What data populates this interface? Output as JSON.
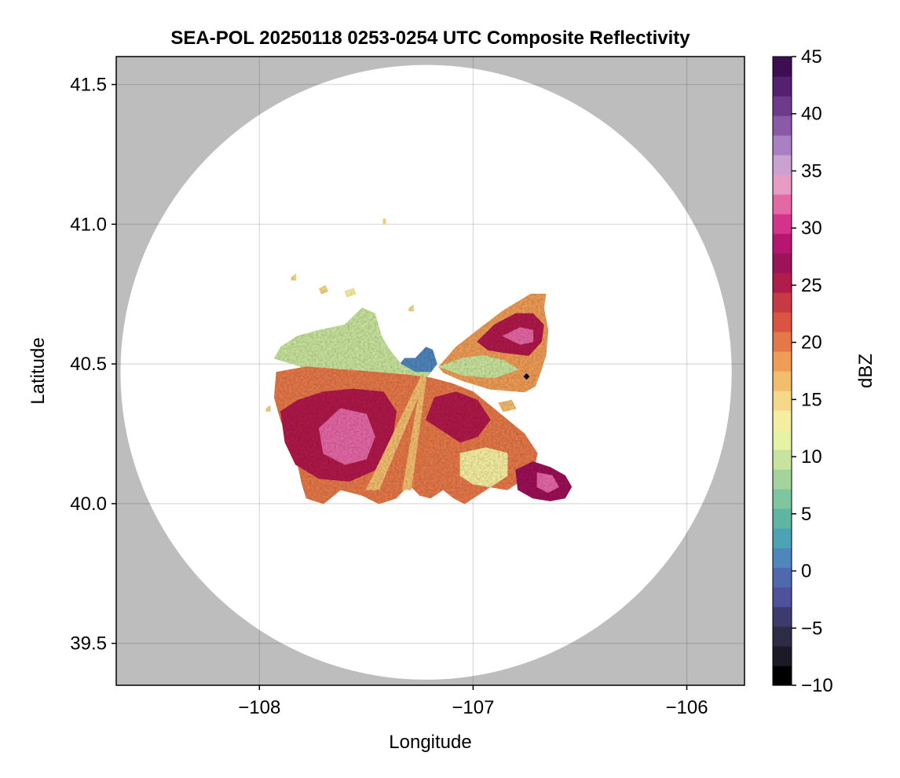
{
  "chart_data": {
    "type": "heatmap",
    "title": "SEA-POL 20250118 0253-0254 UTC Composite Reflectivity",
    "xlabel": "Longitude",
    "ylabel": "Latitude",
    "xlim": [
      -108.67,
      -105.73
    ],
    "ylim": [
      39.35,
      41.6
    ],
    "x_ticks": [
      -108,
      -107,
      -106
    ],
    "x_tick_labels": [
      "−108",
      "−107",
      "−106"
    ],
    "y_ticks": [
      39.5,
      40.0,
      40.5,
      41.0,
      41.5
    ],
    "y_tick_labels": [
      "39.5",
      "40.0",
      "40.5",
      "41.0",
      "41.5"
    ],
    "grid": true,
    "background_color": "#bdbdbd",
    "radar_coverage": {
      "center_lon": -107.22,
      "center_lat": 40.47,
      "radius_lon": 1.43,
      "radius_lat": 1.1,
      "fill": "#ffffff"
    },
    "colorbar": {
      "label": "dBZ",
      "min": -10,
      "max": 45,
      "ticks": [
        -10,
        -5,
        0,
        5,
        10,
        15,
        20,
        25,
        30,
        35,
        40,
        45
      ],
      "tick_labels": [
        "−10",
        "−5",
        "0",
        "5",
        "10",
        "15",
        "20",
        "25",
        "30",
        "35",
        "40",
        "45"
      ],
      "colors": [
        "#000000",
        "#1c1a27",
        "#2e2b45",
        "#3d3a6e",
        "#4f519a",
        "#5069ae",
        "#4f86bb",
        "#4ba3b4",
        "#5db5a2",
        "#7fc59f",
        "#a4d49b",
        "#c7e39d",
        "#e7f3a4",
        "#f5eda0",
        "#f6d88a",
        "#f3bd6e",
        "#ee9c56",
        "#e57848",
        "#d95541",
        "#c73a43",
        "#b01d4b",
        "#9c1458",
        "#b6166f",
        "#d3338a",
        "#e468a4",
        "#e99cc3",
        "#c9a2d2",
        "#a981c2",
        "#8a5aa8",
        "#6e3a8c",
        "#55206f",
        "#3e0e52"
      ]
    },
    "marker": {
      "lon": -106.75,
      "lat": 40.455,
      "shape": "diamond",
      "color": "#000000"
    },
    "echo_regions": [
      {
        "name": "blue-echo",
        "points": [
          [
            -107.35,
            40.49
          ],
          [
            -107.32,
            40.52
          ],
          [
            -107.27,
            40.52
          ],
          [
            -107.22,
            40.56
          ],
          [
            -107.19,
            40.55
          ],
          [
            -107.17,
            40.5
          ],
          [
            -107.2,
            40.47
          ],
          [
            -107.26,
            40.46
          ],
          [
            -107.34,
            40.47
          ]
        ],
        "dbz": 1
      },
      {
        "name": "north-teal",
        "points": [
          [
            -107.9,
            40.56
          ],
          [
            -107.82,
            40.6
          ],
          [
            -107.72,
            40.62
          ],
          [
            -107.6,
            40.64
          ],
          [
            -107.52,
            40.7
          ],
          [
            -107.46,
            40.68
          ],
          [
            -107.43,
            40.6
          ],
          [
            -107.4,
            40.56
          ],
          [
            -107.34,
            40.5
          ],
          [
            -107.27,
            40.47
          ],
          [
            -107.2,
            40.47
          ],
          [
            -107.24,
            40.43
          ],
          [
            -107.4,
            40.45
          ],
          [
            -107.6,
            40.47
          ],
          [
            -107.8,
            40.49
          ],
          [
            -107.93,
            40.52
          ]
        ],
        "dbz": 10
      },
      {
        "name": "ne-wedge",
        "points": [
          [
            -107.16,
            40.49
          ],
          [
            -107.08,
            40.56
          ],
          [
            -106.98,
            40.62
          ],
          [
            -106.86,
            40.69
          ],
          [
            -106.73,
            40.75
          ],
          [
            -106.66,
            40.75
          ],
          [
            -106.67,
            40.7
          ],
          [
            -106.65,
            40.62
          ],
          [
            -106.66,
            40.53
          ],
          [
            -106.69,
            40.46
          ],
          [
            -106.71,
            40.42
          ],
          [
            -106.76,
            40.4
          ],
          [
            -106.92,
            40.41
          ],
          [
            -107.05,
            40.44
          ],
          [
            -107.14,
            40.47
          ]
        ],
        "dbz": 19
      },
      {
        "name": "ne-teal",
        "points": [
          [
            -107.16,
            40.49
          ],
          [
            -107.05,
            40.52
          ],
          [
            -106.95,
            40.53
          ],
          [
            -106.85,
            40.51
          ],
          [
            -106.79,
            40.48
          ],
          [
            -106.9,
            40.45
          ],
          [
            -107.05,
            40.46
          ]
        ],
        "dbz": 10
      },
      {
        "name": "ne-orange",
        "points": [
          [
            -106.98,
            40.58
          ],
          [
            -106.9,
            40.64
          ],
          [
            -106.8,
            40.68
          ],
          [
            -106.72,
            40.68
          ],
          [
            -106.67,
            40.64
          ],
          [
            -106.68,
            40.58
          ],
          [
            -106.74,
            40.53
          ],
          [
            -106.85,
            40.54
          ],
          [
            -106.93,
            40.55
          ]
        ],
        "dbz": 26
      },
      {
        "name": "ne-core",
        "points": [
          [
            -106.86,
            40.6
          ],
          [
            -106.78,
            40.63
          ],
          [
            -106.72,
            40.62
          ],
          [
            -106.72,
            40.58
          ],
          [
            -106.78,
            40.57
          ]
        ],
        "dbz": 32
      },
      {
        "name": "main-echo",
        "points": [
          [
            -107.92,
            40.47
          ],
          [
            -107.93,
            40.38
          ],
          [
            -107.9,
            40.3
          ],
          [
            -107.86,
            40.22
          ],
          [
            -107.82,
            40.14
          ],
          [
            -107.8,
            40.07
          ],
          [
            -107.78,
            40.02
          ],
          [
            -107.7,
            40.0
          ],
          [
            -107.62,
            40.05
          ],
          [
            -107.52,
            40.03
          ],
          [
            -107.44,
            40.0
          ],
          [
            -107.36,
            40.02
          ],
          [
            -107.3,
            40.07
          ],
          [
            -107.25,
            40.03
          ],
          [
            -107.2,
            40.02
          ],
          [
            -107.14,
            40.05
          ],
          [
            -107.09,
            40.02
          ],
          [
            -107.04,
            40.0
          ],
          [
            -106.98,
            40.03
          ],
          [
            -106.92,
            40.06
          ],
          [
            -106.84,
            40.05
          ],
          [
            -106.78,
            40.08
          ],
          [
            -106.72,
            40.11
          ],
          [
            -106.7,
            40.18
          ],
          [
            -106.76,
            40.25
          ],
          [
            -106.84,
            40.3
          ],
          [
            -106.92,
            40.35
          ],
          [
            -107.0,
            40.4
          ],
          [
            -107.1,
            40.43
          ],
          [
            -107.2,
            40.45
          ],
          [
            -107.3,
            40.46
          ],
          [
            -107.45,
            40.47
          ],
          [
            -107.62,
            40.48
          ],
          [
            -107.78,
            40.49
          ]
        ],
        "dbz": 20
      },
      {
        "name": "west-orange",
        "points": [
          [
            -107.9,
            40.33
          ],
          [
            -107.82,
            40.37
          ],
          [
            -107.7,
            40.4
          ],
          [
            -107.56,
            40.41
          ],
          [
            -107.42,
            40.4
          ],
          [
            -107.36,
            40.33
          ],
          [
            -107.38,
            40.22
          ],
          [
            -107.46,
            40.12
          ],
          [
            -107.58,
            40.08
          ],
          [
            -107.72,
            40.09
          ],
          [
            -107.83,
            40.14
          ],
          [
            -107.88,
            40.22
          ]
        ],
        "dbz": 26
      },
      {
        "name": "west-core",
        "points": [
          [
            -107.72,
            40.27
          ],
          [
            -107.62,
            40.34
          ],
          [
            -107.5,
            40.32
          ],
          [
            -107.46,
            40.24
          ],
          [
            -107.5,
            40.16
          ],
          [
            -107.6,
            40.14
          ],
          [
            -107.7,
            40.18
          ]
        ],
        "dbz": 32
      },
      {
        "name": "central-orange",
        "points": [
          [
            -107.18,
            40.38
          ],
          [
            -107.08,
            40.4
          ],
          [
            -106.98,
            40.37
          ],
          [
            -106.92,
            40.3
          ],
          [
            -106.98,
            40.24
          ],
          [
            -107.06,
            40.22
          ],
          [
            -107.14,
            40.26
          ],
          [
            -107.22,
            40.3
          ]
        ],
        "dbz": 25
      },
      {
        "name": "south-green",
        "points": [
          [
            -107.06,
            40.18
          ],
          [
            -106.94,
            40.2
          ],
          [
            -106.84,
            40.18
          ],
          [
            -106.84,
            40.1
          ],
          [
            -106.92,
            40.06
          ],
          [
            -107.0,
            40.07
          ],
          [
            -107.06,
            40.1
          ]
        ],
        "dbz": 14
      },
      {
        "name": "se-orange",
        "points": [
          [
            -106.8,
            40.12
          ],
          [
            -106.72,
            40.15
          ],
          [
            -106.64,
            40.13
          ],
          [
            -106.57,
            40.1
          ],
          [
            -106.54,
            40.06
          ],
          [
            -106.57,
            40.02
          ],
          [
            -106.64,
            40.01
          ],
          [
            -106.72,
            40.02
          ],
          [
            -106.79,
            40.05
          ]
        ],
        "dbz": 27
      },
      {
        "name": "se-core",
        "points": [
          [
            -106.7,
            40.11
          ],
          [
            -106.63,
            40.1
          ],
          [
            -106.6,
            40.06
          ],
          [
            -106.65,
            40.04
          ],
          [
            -106.7,
            40.06
          ]
        ],
        "dbz": 32
      },
      {
        "name": "ray-south",
        "points": [
          [
            -107.22,
            40.45
          ],
          [
            -107.24,
            40.45
          ],
          [
            -107.33,
            40.05
          ],
          [
            -107.29,
            40.05
          ]
        ],
        "dbz": 17
      },
      {
        "name": "ray-sw",
        "points": [
          [
            -107.22,
            40.45
          ],
          [
            -107.24,
            40.46
          ],
          [
            -107.5,
            40.05
          ],
          [
            -107.44,
            40.05
          ]
        ],
        "dbz": 17
      }
    ],
    "echo_fragments": [
      {
        "name": "frag-1",
        "points": [
          [
            -107.42,
            41.02
          ],
          [
            -107.41,
            41.02
          ],
          [
            -107.41,
            41.0
          ],
          [
            -107.42,
            41.0
          ]
        ],
        "dbz": 15
      },
      {
        "name": "frag-2",
        "points": [
          [
            -107.6,
            40.76
          ],
          [
            -107.56,
            40.77
          ],
          [
            -107.55,
            40.75
          ],
          [
            -107.59,
            40.74
          ]
        ],
        "dbz": 14
      },
      {
        "name": "frag-3",
        "points": [
          [
            -107.72,
            40.77
          ],
          [
            -107.69,
            40.78
          ],
          [
            -107.68,
            40.76
          ],
          [
            -107.71,
            40.75
          ]
        ],
        "dbz": 15
      },
      {
        "name": "frag-4",
        "points": [
          [
            -107.85,
            40.81
          ],
          [
            -107.83,
            40.82
          ],
          [
            -107.83,
            40.8
          ],
          [
            -107.85,
            40.8
          ]
        ],
        "dbz": 15
      },
      {
        "name": "frag-5",
        "points": [
          [
            -107.97,
            40.34
          ],
          [
            -107.95,
            40.35
          ],
          [
            -107.95,
            40.33
          ],
          [
            -107.97,
            40.33
          ]
        ],
        "dbz": 15
      },
      {
        "name": "frag-6",
        "points": [
          [
            -107.3,
            40.7
          ],
          [
            -107.28,
            40.71
          ],
          [
            -107.28,
            40.69
          ],
          [
            -107.3,
            40.69
          ]
        ],
        "dbz": 15
      },
      {
        "name": "frag-7",
        "points": [
          [
            -106.88,
            40.36
          ],
          [
            -106.82,
            40.37
          ],
          [
            -106.8,
            40.34
          ],
          [
            -106.86,
            40.33
          ]
        ],
        "dbz": 16
      }
    ]
  }
}
